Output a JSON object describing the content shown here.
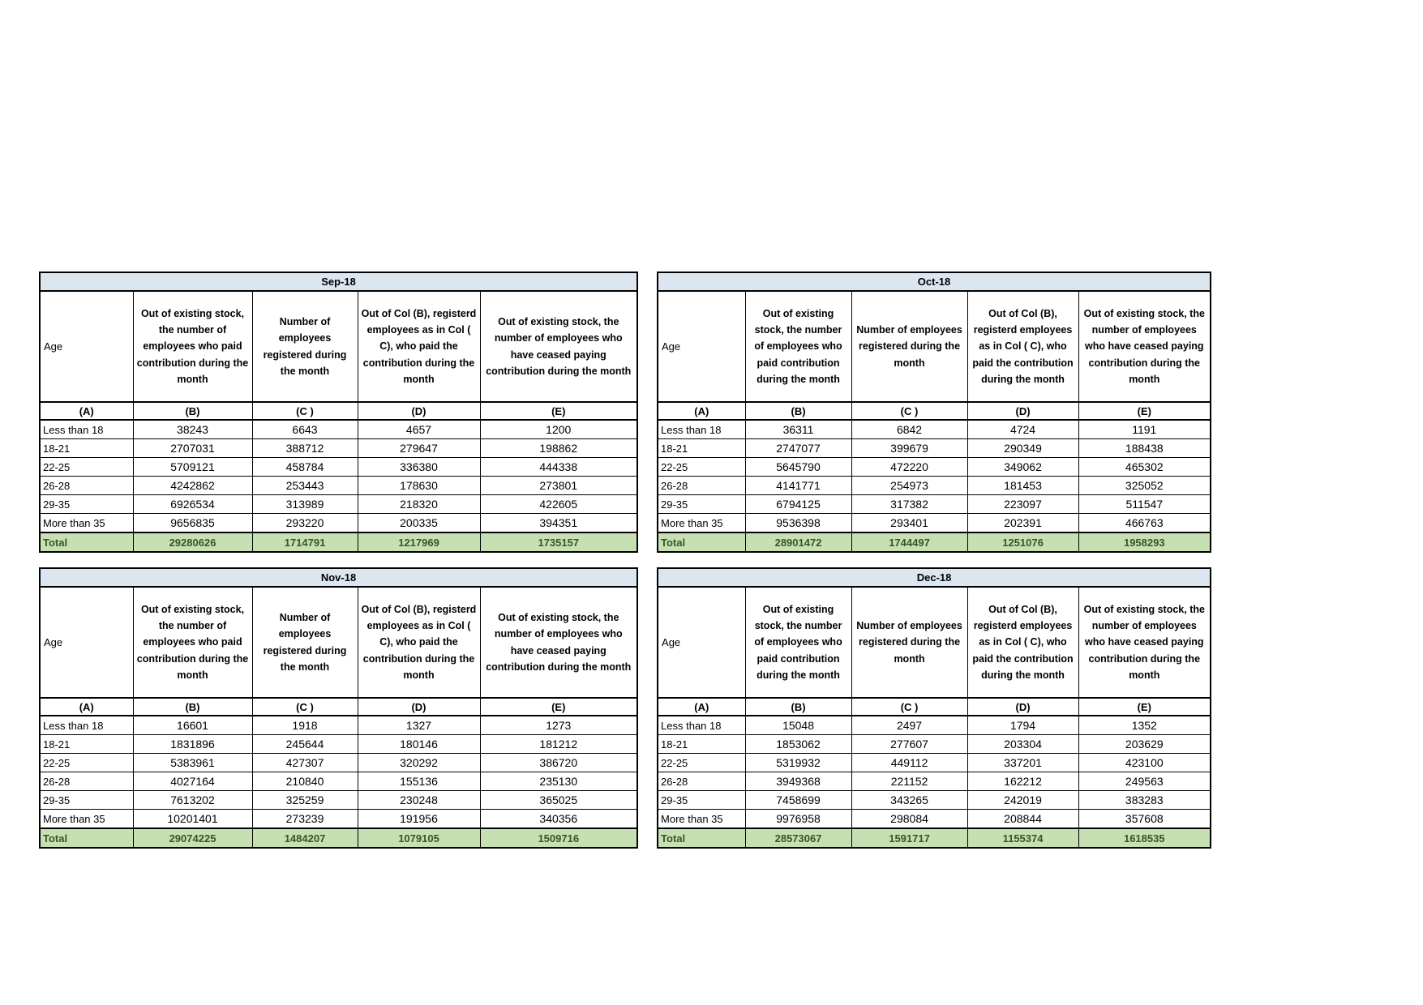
{
  "colors": {
    "title_bar_bg": "#dce6f1",
    "total_row_bg": "#c6e0b4",
    "total_row_text": "#375623",
    "border": "#000000",
    "page_bg": "#ffffff"
  },
  "headers": {
    "age": "Age",
    "paid_contribution": "Out of existing stock, the number of employees who paid contribution during the month",
    "registered": "Number of employees registered during the month",
    "col_b_paid": "Out of Col (B), registerd employees as in Col ( C), who paid the contribution during the month",
    "ceased_paying": "Out of existing stock, the number of employees  who have ceased paying contribution during the month"
  },
  "column_letters": [
    "(A)",
    "(B)",
    "(C )",
    "(D)",
    "(E)"
  ],
  "tables": [
    {
      "title": "Sep-18",
      "rows": [
        {
          "age": "Less than 18",
          "values": [
            "38243",
            "6643",
            "4657",
            "1200"
          ]
        },
        {
          "age": "18-21",
          "values": [
            "2707031",
            "388712",
            "279647",
            "198862"
          ]
        },
        {
          "age": "22-25",
          "values": [
            "5709121",
            "458784",
            "336380",
            "444338"
          ]
        },
        {
          "age": "26-28",
          "values": [
            "4242862",
            "253443",
            "178630",
            "273801"
          ]
        },
        {
          "age": "29-35",
          "values": [
            "6926534",
            "313989",
            "218320",
            "422605"
          ]
        },
        {
          "age": "More than 35",
          "values": [
            "9656835",
            "293220",
            "200335",
            "394351"
          ]
        }
      ],
      "total": {
        "label": "Total",
        "values": [
          "29280626",
          "1714791",
          "1217969",
          "1735157"
        ]
      }
    },
    {
      "title": "Oct-18",
      "rows": [
        {
          "age": "Less than 18",
          "values": [
            "36311",
            "6842",
            "4724",
            "1191"
          ]
        },
        {
          "age": "18-21",
          "values": [
            "2747077",
            "399679",
            "290349",
            "188438"
          ]
        },
        {
          "age": "22-25",
          "values": [
            "5645790",
            "472220",
            "349062",
            "465302"
          ]
        },
        {
          "age": "26-28",
          "values": [
            "4141771",
            "254973",
            "181453",
            "325052"
          ]
        },
        {
          "age": "29-35",
          "values": [
            "6794125",
            "317382",
            "223097",
            "511547"
          ]
        },
        {
          "age": "More than 35",
          "values": [
            "9536398",
            "293401",
            "202391",
            "466763"
          ]
        }
      ],
      "total": {
        "label": "Total",
        "values": [
          "28901472",
          "1744497",
          "1251076",
          "1958293"
        ]
      }
    },
    {
      "title": "Nov-18",
      "rows": [
        {
          "age": "Less than 18",
          "values": [
            "16601",
            "1918",
            "1327",
            "1273"
          ]
        },
        {
          "age": "18-21",
          "values": [
            "1831896",
            "245644",
            "180146",
            "181212"
          ]
        },
        {
          "age": "22-25",
          "values": [
            "5383961",
            "427307",
            "320292",
            "386720"
          ]
        },
        {
          "age": "26-28",
          "values": [
            "4027164",
            "210840",
            "155136",
            "235130"
          ]
        },
        {
          "age": "29-35",
          "values": [
            "7613202",
            "325259",
            "230248",
            "365025"
          ]
        },
        {
          "age": "More than 35",
          "values": [
            "10201401",
            "273239",
            "191956",
            "340356"
          ]
        }
      ],
      "total": {
        "label": "Total",
        "values": [
          "29074225",
          "1484207",
          "1079105",
          "1509716"
        ]
      }
    },
    {
      "title": "Dec-18",
      "rows": [
        {
          "age": "Less than 18",
          "values": [
            "15048",
            "2497",
            "1794",
            "1352"
          ]
        },
        {
          "age": "18-21",
          "values": [
            "1853062",
            "277607",
            "203304",
            "203629"
          ]
        },
        {
          "age": "22-25",
          "values": [
            "5319932",
            "449112",
            "337201",
            "423100"
          ]
        },
        {
          "age": "26-28",
          "values": [
            "3949368",
            "221152",
            "162212",
            "249563"
          ]
        },
        {
          "age": "29-35",
          "values": [
            "7458699",
            "343265",
            "242019",
            "383283"
          ]
        },
        {
          "age": "More than 35",
          "values": [
            "9976958",
            "298084",
            "208844",
            "357608"
          ]
        }
      ],
      "total": {
        "label": "Total",
        "values": [
          "28573067",
          "1591717",
          "1155374",
          "1618535"
        ]
      }
    }
  ]
}
